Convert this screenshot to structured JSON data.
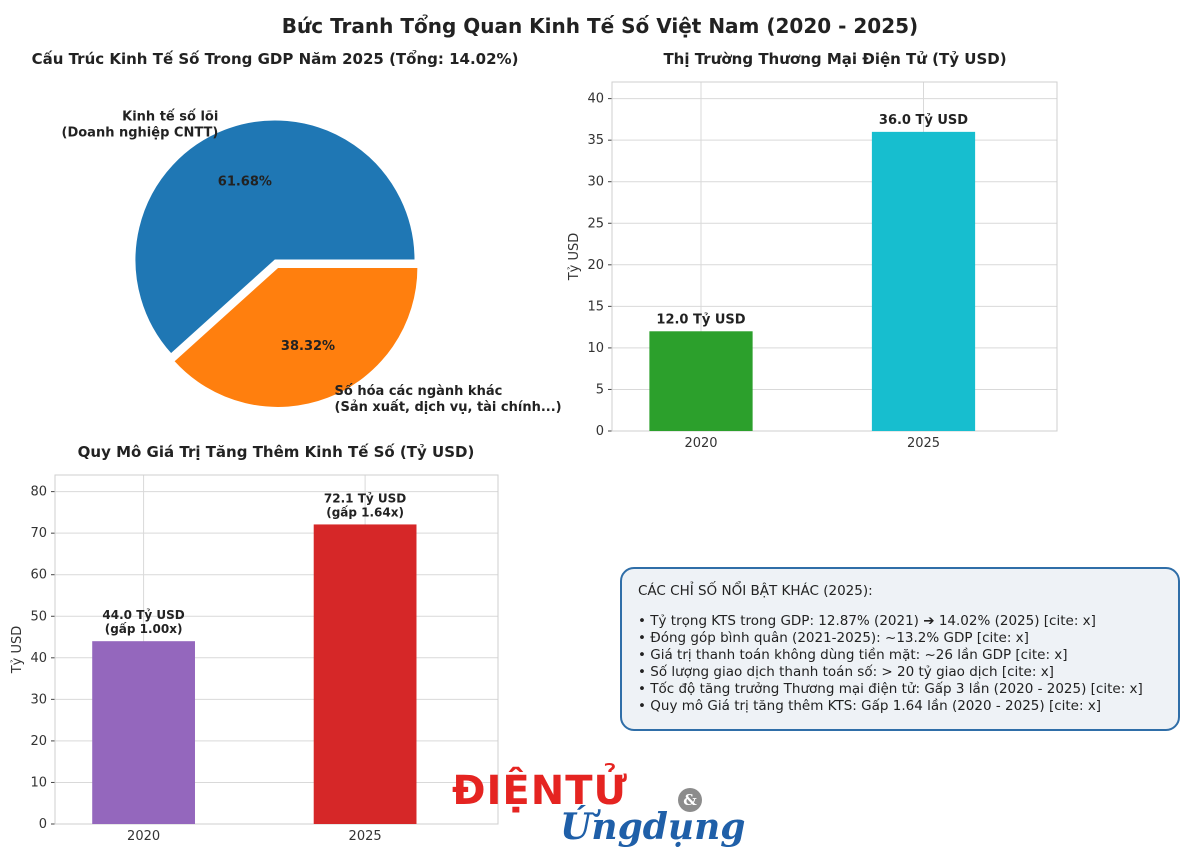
{
  "page_title": "Bức Tranh Tổng Quan Kinh Tế Số Việt Nam (2020 - 2025)",
  "chart_data": [
    {
      "type": "pie",
      "title": "Cấu Trúc Kinh Tế Số Trong GDP Năm 2025 (Tổng: 14.02%)",
      "slices": [
        {
          "label_line1": "Kinh tế số lõi",
          "label_line2": "(Doanh nghiệp CNTT)",
          "value": 61.68,
          "pct_label": "61.68%",
          "color": "#1f77b4"
        },
        {
          "label_line1": "Số hóa các ngành khác",
          "label_line2": "(Sản xuất, dịch vụ, tài chính...)",
          "value": 38.32,
          "pct_label": "38.32%",
          "color": "#ff7f0e"
        }
      ]
    },
    {
      "type": "bar",
      "title": "Thị Trường Thương Mại Điện Tử (Tỷ USD)",
      "ylabel": "Tỷ USD",
      "xlabel": "",
      "categories": [
        "2020",
        "2025"
      ],
      "values": [
        12.0,
        36.0
      ],
      "data_labels": [
        [
          "12.0 Tỷ USD"
        ],
        [
          "36.0 Tỷ USD"
        ]
      ],
      "colors": [
        "#2ca02c",
        "#17becf"
      ],
      "ylim": [
        0,
        42
      ],
      "yticks": [
        0,
        5,
        10,
        15,
        20,
        25,
        30,
        35,
        40
      ],
      "grid": true
    },
    {
      "type": "bar",
      "title": "Quy Mô Giá Trị Tăng Thêm Kinh Tế Số (Tỷ USD)",
      "ylabel": "Tỷ USD",
      "xlabel": "",
      "categories": [
        "2020",
        "2025"
      ],
      "values": [
        44.0,
        72.1
      ],
      "data_labels": [
        [
          "44.0 Tỷ USD",
          "(gấp 1.00x)"
        ],
        [
          "72.1 Tỷ USD",
          "(gấp 1.64x)"
        ]
      ],
      "colors": [
        "#9467bd",
        "#d62728"
      ],
      "ylim": [
        0,
        84
      ],
      "yticks": [
        0,
        10,
        20,
        30,
        40,
        50,
        60,
        70,
        80
      ],
      "grid": true
    }
  ],
  "info_box": {
    "header": "CÁC CHỈ SỐ NỔI BẬT KHÁC (2025):",
    "items": [
      "Tỷ trọng KTS trong GDP: 12.87% (2021) ➔ 14.02% (2025) [cite: x]",
      "Đóng góp bình quân (2021-2025): ~13.2% GDP [cite: x]",
      "Giá trị thanh toán không dùng tiền mặt: ~26 lần GDP [cite: x]",
      "Số lượng giao dịch thanh toán số: > 20 tỷ giao dịch [cite: x]",
      "Tốc độ tăng trưởng Thương mại điện tử: Gấp 3 lần (2020 - 2025) [cite: x]",
      "Quy mô Giá trị tăng thêm KTS: Gấp 1.64 lần (2020 - 2025) [cite: x]"
    ]
  },
  "logo": {
    "line1": "ĐIỆNTỬ",
    "amp": "&",
    "line2": "Ứngdụng"
  }
}
